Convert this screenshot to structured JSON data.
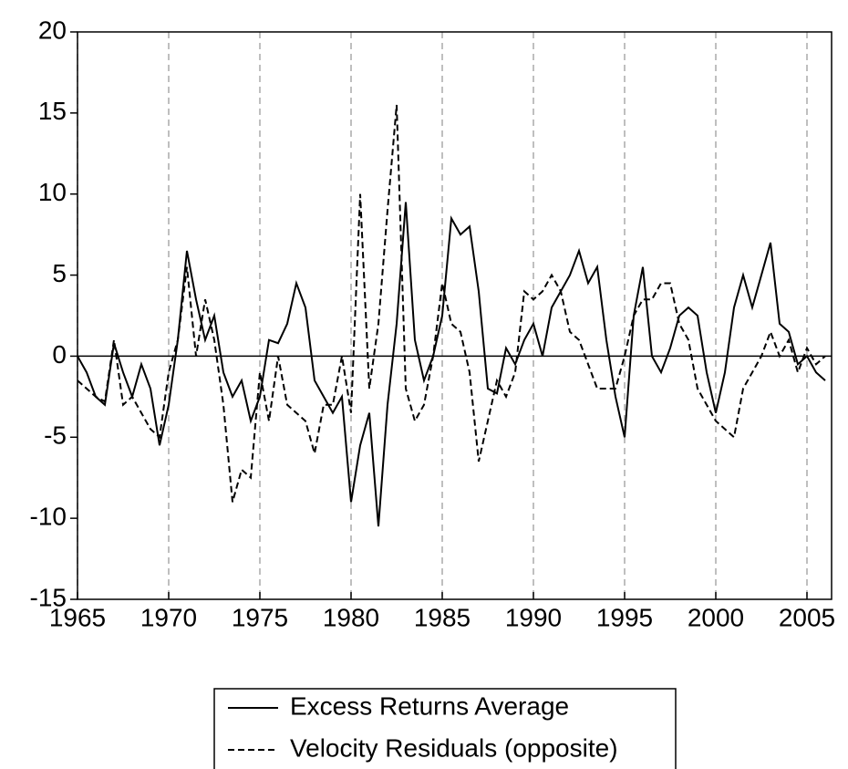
{
  "chart_data": {
    "type": "line",
    "x": [
      1965,
      1965.5,
      1966,
      1966.5,
      1967,
      1967.5,
      1968,
      1968.5,
      1969,
      1969.5,
      1970,
      1970.5,
      1971,
      1971.5,
      1972,
      1972.5,
      1973,
      1973.5,
      1974,
      1974.5,
      1975,
      1975.5,
      1976,
      1976.5,
      1977,
      1977.5,
      1978,
      1978.5,
      1979,
      1979.5,
      1980,
      1980.5,
      1981,
      1981.5,
      1982,
      1982.5,
      1983,
      1983.5,
      1984,
      1984.5,
      1985,
      1985.5,
      1986,
      1986.5,
      1987,
      1987.5,
      1988,
      1988.5,
      1989,
      1989.5,
      1990,
      1990.5,
      1991,
      1991.5,
      1992,
      1992.5,
      1993,
      1993.5,
      1994,
      1994.5,
      1995,
      1995.5,
      1996,
      1996.5,
      1997,
      1997.5,
      1998,
      1998.5,
      1999,
      1999.5,
      2000,
      2000.5,
      2001,
      2001.5,
      2002,
      2002.5,
      2003,
      2003.5,
      2004,
      2004.5,
      2005,
      2005.5,
      2006
    ],
    "series": [
      {
        "name": "Excess Returns Average",
        "color": "#000000",
        "dash": "solid",
        "values": [
          0,
          -1,
          -2.5,
          -3,
          0.8,
          -1,
          -2.5,
          -0.5,
          -2,
          -5.5,
          -3,
          1,
          6.5,
          3.5,
          1,
          2.5,
          -1,
          -2.5,
          -1.5,
          -4,
          -2.5,
          1,
          0.8,
          2,
          4.5,
          3,
          -1.5,
          -2.5,
          -3.5,
          -2.5,
          -9,
          -5.5,
          -3.5,
          -10.5,
          -3,
          2,
          9.5,
          1,
          -1.5,
          0,
          2.5,
          8.5,
          7.5,
          8,
          4,
          -2,
          -2.3,
          0.5,
          -0.5,
          1,
          2,
          0,
          3,
          4,
          5,
          6.5,
          4.5,
          5.5,
          1,
          -2.5,
          -5,
          2.5,
          5.5,
          0,
          -1,
          0.5,
          2.5,
          3,
          2.5,
          -1,
          -3.5,
          -1,
          3,
          5,
          3,
          5,
          7,
          2,
          1.5,
          -0.5,
          0,
          -1,
          -1.5
        ]
      },
      {
        "name": "Velocity Residuals (opposite)",
        "color": "#000000",
        "dash": "dashed",
        "values": [
          -1.5,
          -2,
          -2.5,
          -2.8,
          1,
          -3,
          -2.5,
          -3.5,
          -4.5,
          -5,
          -1,
          1,
          5.5,
          0,
          3.5,
          1,
          -3,
          -9,
          -7,
          -7.5,
          -1,
          -4,
          0,
          -3,
          -3.5,
          -4,
          -6,
          -3,
          -3,
          0,
          -3.5,
          10,
          -2,
          2,
          9,
          15.5,
          -2,
          -4,
          -3,
          0,
          4.5,
          2,
          1.5,
          -1,
          -6.5,
          -4,
          -1.5,
          -2.5,
          -1,
          4,
          3.5,
          4,
          5,
          4,
          1.5,
          1,
          -0.5,
          -2,
          -2,
          -2,
          0,
          2.5,
          3.5,
          3.5,
          4.5,
          4.5,
          2,
          1,
          -2,
          -3,
          -4,
          -4.5,
          -5,
          -2,
          -1,
          0,
          1.5,
          0,
          1,
          -1,
          0.5,
          -0.5,
          0
        ]
      }
    ],
    "xlim": [
      1965,
      2006.35
    ],
    "ylim": [
      -15,
      20
    ],
    "xticks": [
      1965,
      1970,
      1975,
      1980,
      1985,
      1990,
      1995,
      2000,
      2005
    ],
    "yticks": [
      -15,
      -10,
      -5,
      0,
      5,
      10,
      15,
      20
    ],
    "grid": "x",
    "hline": 0,
    "legend": "bottom"
  }
}
